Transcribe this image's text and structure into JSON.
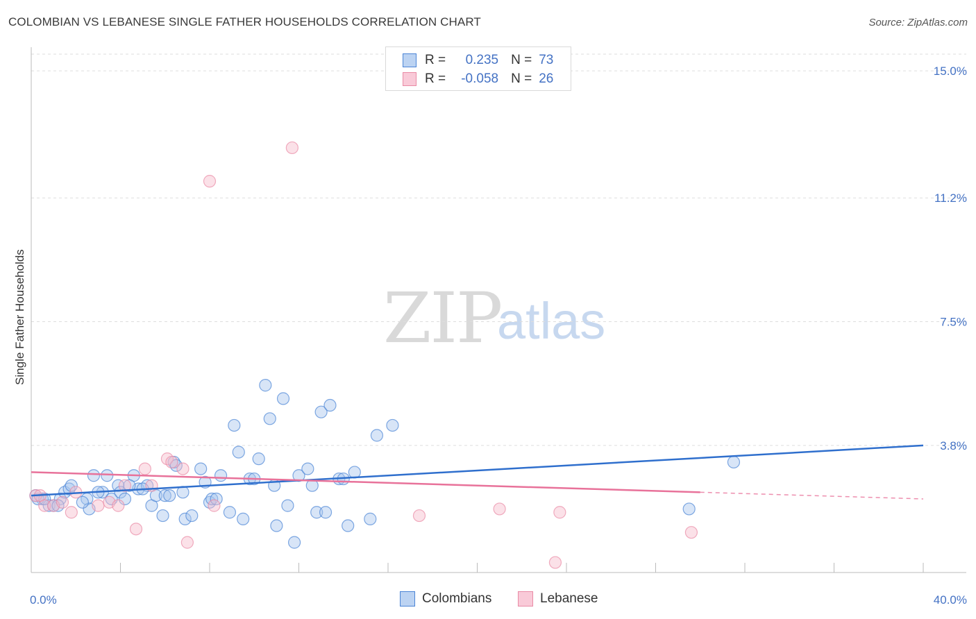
{
  "title": "COLOMBIAN VS LEBANESE SINGLE FATHER HOUSEHOLDS CORRELATION CHART",
  "source": "Source: ZipAtlas.com",
  "watermark": {
    "zip": "ZIP",
    "atlas": "atlas"
  },
  "legend": {
    "rows": [
      {
        "r_label": "R =",
        "r_value": "0.235",
        "n_label": "N =",
        "n_value": "73"
      },
      {
        "r_label": "R =",
        "r_value": "-0.058",
        "n_label": "N =",
        "n_value": "26"
      }
    ]
  },
  "bottom_legend": {
    "colombians": "Colombians",
    "lebanese": "Lebanese"
  },
  "colors": {
    "blue_fill": "#a9c6ee",
    "blue_stroke": "#4a84d6",
    "blue_line": "#2f6fcd",
    "pink_fill": "#f7bccd",
    "pink_stroke": "#e98aa5",
    "pink_line": "#e8729a",
    "grid": "#dddddd",
    "tick_text": "#4472c4"
  },
  "chart_data": {
    "type": "scatter",
    "title": "COLOMBIAN VS LEBANESE SINGLE FATHER HOUSEHOLDS CORRELATION CHART",
    "xlabel": "",
    "ylabel": "Single Father Households",
    "xlim": [
      0,
      40
    ],
    "ylim": [
      0,
      15.5
    ],
    "x_tick_labels": [
      "0.0%",
      "40.0%"
    ],
    "y_ticks": [
      3.8,
      7.5,
      11.2,
      15.0
    ],
    "y_tick_labels": [
      "3.8%",
      "7.5%",
      "11.2%",
      "15.0%"
    ],
    "grid": true,
    "series": [
      {
        "name": "Colombians",
        "r": 0.235,
        "n": 73,
        "trend": {
          "x": [
            0,
            40
          ],
          "y": [
            2.3,
            3.8
          ]
        },
        "points": [
          [
            0.2,
            2.3
          ],
          [
            0.5,
            2.2
          ],
          [
            0.8,
            2.0
          ],
          [
            1.0,
            2.0
          ],
          [
            1.3,
            2.2
          ],
          [
            1.5,
            2.4
          ],
          [
            1.7,
            2.5
          ],
          [
            1.8,
            2.6
          ],
          [
            2.5,
            2.2
          ],
          [
            2.6,
            1.9
          ],
          [
            2.8,
            2.9
          ],
          [
            3.2,
            2.4
          ],
          [
            3.4,
            2.9
          ],
          [
            3.6,
            2.2
          ],
          [
            3.9,
            2.6
          ],
          [
            4.0,
            2.4
          ],
          [
            4.2,
            2.2
          ],
          [
            4.6,
            2.9
          ],
          [
            4.8,
            2.5
          ],
          [
            5.2,
            2.6
          ],
          [
            5.4,
            2.0
          ],
          [
            5.6,
            2.3
          ],
          [
            5.9,
            1.7
          ],
          [
            6.0,
            2.3
          ],
          [
            6.2,
            2.3
          ],
          [
            6.4,
            3.3
          ],
          [
            6.5,
            3.2
          ],
          [
            6.8,
            2.4
          ],
          [
            6.9,
            1.6
          ],
          [
            7.2,
            1.7
          ],
          [
            7.6,
            3.1
          ],
          [
            7.8,
            2.7
          ],
          [
            8.0,
            2.1
          ],
          [
            8.1,
            2.2
          ],
          [
            8.3,
            2.2
          ],
          [
            8.5,
            2.9
          ],
          [
            8.9,
            1.8
          ],
          [
            9.1,
            4.4
          ],
          [
            9.3,
            3.6
          ],
          [
            9.5,
            1.6
          ],
          [
            9.8,
            2.8
          ],
          [
            10.0,
            2.8
          ],
          [
            10.2,
            3.4
          ],
          [
            10.5,
            5.6
          ],
          [
            10.7,
            4.6
          ],
          [
            10.9,
            2.6
          ],
          [
            11.0,
            1.4
          ],
          [
            11.3,
            5.2
          ],
          [
            11.5,
            2.0
          ],
          [
            11.8,
            0.9
          ],
          [
            12.0,
            2.9
          ],
          [
            12.4,
            3.1
          ],
          [
            12.6,
            2.6
          ],
          [
            12.8,
            1.8
          ],
          [
            13.0,
            4.8
          ],
          [
            13.2,
            1.8
          ],
          [
            13.4,
            5.0
          ],
          [
            13.8,
            2.8
          ],
          [
            14.0,
            2.8
          ],
          [
            14.2,
            1.4
          ],
          [
            14.5,
            3.0
          ],
          [
            15.2,
            1.6
          ],
          [
            15.5,
            4.1
          ],
          [
            16.2,
            4.4
          ],
          [
            0.3,
            2.2
          ],
          [
            0.6,
            2.2
          ],
          [
            1.2,
            2.0
          ],
          [
            2.3,
            2.1
          ],
          [
            3.0,
            2.4
          ],
          [
            4.4,
            2.6
          ],
          [
            5.0,
            2.5
          ],
          [
            29.5,
            1.9
          ],
          [
            31.5,
            3.3
          ]
        ]
      },
      {
        "name": "Lebanese",
        "r": -0.058,
        "n": 26,
        "trend": {
          "x": [
            0,
            30
          ],
          "y": [
            3.0,
            2.4
          ]
        },
        "points": [
          [
            0.2,
            2.3
          ],
          [
            0.4,
            2.3
          ],
          [
            0.6,
            2.0
          ],
          [
            1.0,
            2.0
          ],
          [
            1.4,
            2.1
          ],
          [
            1.8,
            1.8
          ],
          [
            2.0,
            2.4
          ],
          [
            3.0,
            2.0
          ],
          [
            3.5,
            2.1
          ],
          [
            3.9,
            2.0
          ],
          [
            4.2,
            2.6
          ],
          [
            4.7,
            1.3
          ],
          [
            5.1,
            3.1
          ],
          [
            5.4,
            2.6
          ],
          [
            6.1,
            3.4
          ],
          [
            6.3,
            3.3
          ],
          [
            6.8,
            3.1
          ],
          [
            7.0,
            0.9
          ],
          [
            8.0,
            11.7
          ],
          [
            8.2,
            2.0
          ],
          [
            11.7,
            12.7
          ],
          [
            17.4,
            1.7
          ],
          [
            21.0,
            1.9
          ],
          [
            23.7,
            1.8
          ],
          [
            23.5,
            0.3
          ],
          [
            29.6,
            1.2
          ]
        ]
      }
    ]
  }
}
